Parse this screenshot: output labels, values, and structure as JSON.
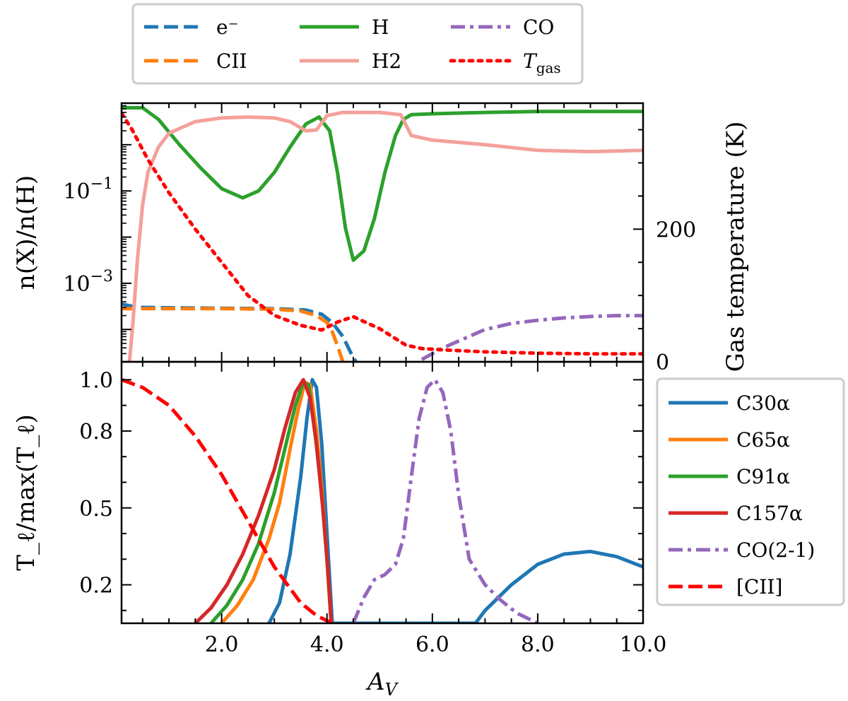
{
  "chart_data": [
    {
      "type": "line",
      "panel": "top",
      "xlabel": "A_V",
      "ylabel": "n(X)/n(H)",
      "y_scale": "log",
      "xlim": [
        0.1,
        10.0
      ],
      "ylim_log10": [
        -4.7,
        0.9
      ],
      "y_ticks": [
        {
          "exp": -1,
          "label_base": "10",
          "label_exp": "−1"
        },
        {
          "exp": -3,
          "label_base": "10",
          "label_exp": "−3"
        }
      ],
      "y2label": "Gas temperature (K)",
      "y2lim": [
        0,
        390
      ],
      "y2_ticks": [
        0,
        200
      ],
      "y2_tick_labels": [
        "0",
        "200"
      ],
      "legend": {
        "placement": "above-top",
        "entries": [
          {
            "label": "e⁻",
            "series": "e"
          },
          {
            "label": "CII",
            "series": "CII"
          },
          {
            "label": "H",
            "series": "H"
          },
          {
            "label": "H2",
            "series": "H2"
          },
          {
            "label": "CO",
            "series": "CO"
          },
          {
            "label": "T",
            "label_sub": "gas",
            "series": "Tgas"
          }
        ]
      },
      "series": [
        {
          "name": "e",
          "axis": "left",
          "color": "#1f77b4",
          "style": "dashed",
          "x": [
            0.1,
            0.4,
            1.0,
            2.0,
            3.0,
            3.6,
            3.9,
            4.1,
            4.3,
            4.45,
            4.55
          ],
          "y": [
            -3.45,
            -3.52,
            -3.53,
            -3.54,
            -3.55,
            -3.58,
            -3.67,
            -3.85,
            -4.15,
            -4.5,
            -4.7
          ]
        },
        {
          "name": "CII",
          "axis": "left",
          "color": "#ff7f0e",
          "style": "dashed",
          "x": [
            0.1,
            1.0,
            2.0,
            3.0,
            3.5,
            3.8,
            4.0,
            4.1,
            4.2,
            4.3
          ],
          "y": [
            -3.55,
            -3.55,
            -3.55,
            -3.56,
            -3.6,
            -3.7,
            -3.85,
            -4.05,
            -4.35,
            -4.7
          ]
        },
        {
          "name": "H",
          "axis": "left",
          "color": "#2ca02c",
          "style": "solid",
          "x": [
            0.1,
            0.5,
            0.8,
            1.2,
            1.6,
            2.0,
            2.4,
            2.7,
            3.0,
            3.3,
            3.6,
            3.85,
            4.05,
            4.2,
            4.35,
            4.5,
            4.7,
            4.9,
            5.1,
            5.3,
            5.45,
            5.6,
            6.0,
            7.0,
            8.0,
            9.0,
            10.0
          ],
          "y": [
            0.8,
            0.8,
            0.55,
            0.0,
            -0.5,
            -0.95,
            -1.15,
            -1.0,
            -0.6,
            -0.05,
            0.45,
            0.6,
            0.3,
            -0.6,
            -1.8,
            -2.5,
            -2.3,
            -1.6,
            -0.6,
            0.2,
            0.55,
            0.65,
            0.67,
            0.7,
            0.72,
            0.72,
            0.72
          ]
        },
        {
          "name": "H2",
          "axis": "left",
          "color": "#f4a09a",
          "style": "solid",
          "x": [
            0.25,
            0.32,
            0.4,
            0.5,
            0.6,
            0.8,
            1.0,
            1.5,
            2.0,
            2.5,
            3.0,
            3.3,
            3.6,
            3.8,
            4.0,
            4.3,
            5.0,
            5.4,
            5.6,
            6.0,
            7.0,
            8.0,
            9.0,
            10.0
          ],
          "y": [
            -4.7,
            -3.8,
            -2.5,
            -1.3,
            -0.6,
            -0.05,
            0.25,
            0.5,
            0.58,
            0.6,
            0.58,
            0.5,
            0.3,
            0.32,
            0.63,
            0.7,
            0.7,
            0.65,
            0.2,
            0.1,
            0.0,
            -0.12,
            -0.15,
            -0.12
          ]
        },
        {
          "name": "CO",
          "axis": "left",
          "color": "#9467bd",
          "style": "dashdot",
          "x": [
            5.8,
            6.2,
            6.6,
            7.0,
            7.5,
            8.0,
            8.5,
            9.0,
            9.5,
            10.0
          ],
          "y": [
            -4.65,
            -4.4,
            -4.2,
            -4.0,
            -3.87,
            -3.8,
            -3.75,
            -3.72,
            -3.7,
            -3.7
          ]
        },
        {
          "name": "Tgas",
          "axis": "right",
          "color": "#ff0000",
          "style": "dotted",
          "x": [
            0.1,
            0.3,
            0.6,
            1.0,
            1.5,
            2.0,
            2.5,
            3.0,
            3.5,
            3.9,
            4.2,
            4.5,
            5.0,
            5.5,
            5.8,
            6.2,
            7.0,
            8.0,
            9.0,
            10.0
          ],
          "y": [
            375,
            350,
            305,
            255,
            200,
            150,
            100,
            70,
            55,
            48,
            60,
            68,
            50,
            25,
            20,
            18,
            15,
            13,
            12,
            12
          ]
        }
      ]
    },
    {
      "type": "line",
      "panel": "bottom",
      "xlabel": "A_V",
      "ylabel": "T_ℓ/max(T_ℓ)",
      "xlim": [
        0.1,
        10.0
      ],
      "ylim": [
        0.05,
        1.07
      ],
      "x_ticks": [
        2.0,
        4.0,
        6.0,
        8.0,
        10.0
      ],
      "x_tick_labels": [
        "2.0",
        "4.0",
        "6.0",
        "8.0",
        "10.0"
      ],
      "y_ticks": [
        0.2,
        0.5,
        0.8,
        1.0
      ],
      "y_tick_labels": [
        "0.2",
        "0.5",
        "0.8",
        "1.0"
      ],
      "legend": {
        "placement": "right",
        "entries": [
          {
            "label": "C30α",
            "series": "C30α"
          },
          {
            "label": "C65α",
            "series": "C65α"
          },
          {
            "label": "C91α",
            "series": "C91α"
          },
          {
            "label": "C157α",
            "series": "C157α"
          },
          {
            "label": "CO(2-1)",
            "series": "CO(2-1)"
          },
          {
            "label": "[CII]",
            "series": "[CII]"
          }
        ]
      },
      "series": [
        {
          "name": "C30α",
          "color": "#1f77b4",
          "style": "solid",
          "x": [
            2.9,
            3.1,
            3.3,
            3.5,
            3.62,
            3.72,
            3.8,
            3.9,
            4.0,
            4.1,
            6.82,
            7.0,
            7.5,
            8.0,
            8.5,
            9.0,
            9.5,
            10.0
          ],
          "y": [
            0.05,
            0.13,
            0.32,
            0.62,
            0.85,
            1.0,
            0.97,
            0.75,
            0.4,
            0.05,
            0.05,
            0.1,
            0.2,
            0.28,
            0.32,
            0.33,
            0.31,
            0.27
          ]
        },
        {
          "name": "C65α",
          "color": "#ff7f0e",
          "style": "solid",
          "x": [
            2.0,
            2.3,
            2.6,
            2.9,
            3.1,
            3.3,
            3.45,
            3.58,
            3.68,
            3.8,
            3.9,
            4.0,
            4.08
          ],
          "y": [
            0.05,
            0.12,
            0.22,
            0.38,
            0.52,
            0.73,
            0.88,
            0.99,
            0.98,
            0.8,
            0.58,
            0.3,
            0.05
          ]
        },
        {
          "name": "C91α",
          "color": "#2ca02c",
          "style": "solid",
          "x": [
            1.8,
            2.1,
            2.4,
            2.7,
            3.0,
            3.2,
            3.4,
            3.55,
            3.65,
            3.78,
            3.9,
            4.0,
            4.08
          ],
          "y": [
            0.05,
            0.12,
            0.22,
            0.36,
            0.56,
            0.73,
            0.9,
            0.99,
            0.98,
            0.78,
            0.55,
            0.3,
            0.05
          ]
        },
        {
          "name": "C157α",
          "color": "#d62728",
          "style": "solid",
          "x": [
            1.5,
            1.8,
            2.1,
            2.4,
            2.7,
            3.0,
            3.2,
            3.4,
            3.55,
            3.68,
            3.8,
            3.92,
            4.02,
            4.08
          ],
          "y": [
            0.05,
            0.11,
            0.2,
            0.32,
            0.47,
            0.65,
            0.81,
            0.95,
            1.0,
            0.93,
            0.75,
            0.5,
            0.25,
            0.05
          ]
        },
        {
          "name": "CO(2-1)",
          "color": "#9467bd",
          "style": "dashdot",
          "x": [
            4.5,
            4.7,
            4.9,
            5.1,
            5.3,
            5.45,
            5.6,
            5.75,
            5.9,
            6.05,
            6.2,
            6.35,
            6.5,
            6.7,
            7.0,
            7.3,
            7.6,
            8.0
          ],
          "y": [
            0.05,
            0.15,
            0.22,
            0.24,
            0.28,
            0.38,
            0.62,
            0.85,
            0.97,
            1.0,
            0.95,
            0.8,
            0.55,
            0.3,
            0.2,
            0.14,
            0.09,
            0.05
          ]
        },
        {
          "name": "[CII]",
          "color": "#ff0000",
          "style": "dashed",
          "x": [
            0.1,
            0.5,
            1.0,
            1.5,
            2.0,
            2.5,
            3.0,
            3.5,
            3.8,
            4.0,
            4.1
          ],
          "y": [
            1.0,
            0.97,
            0.9,
            0.78,
            0.63,
            0.45,
            0.27,
            0.13,
            0.08,
            0.06,
            0.05
          ]
        }
      ]
    }
  ]
}
